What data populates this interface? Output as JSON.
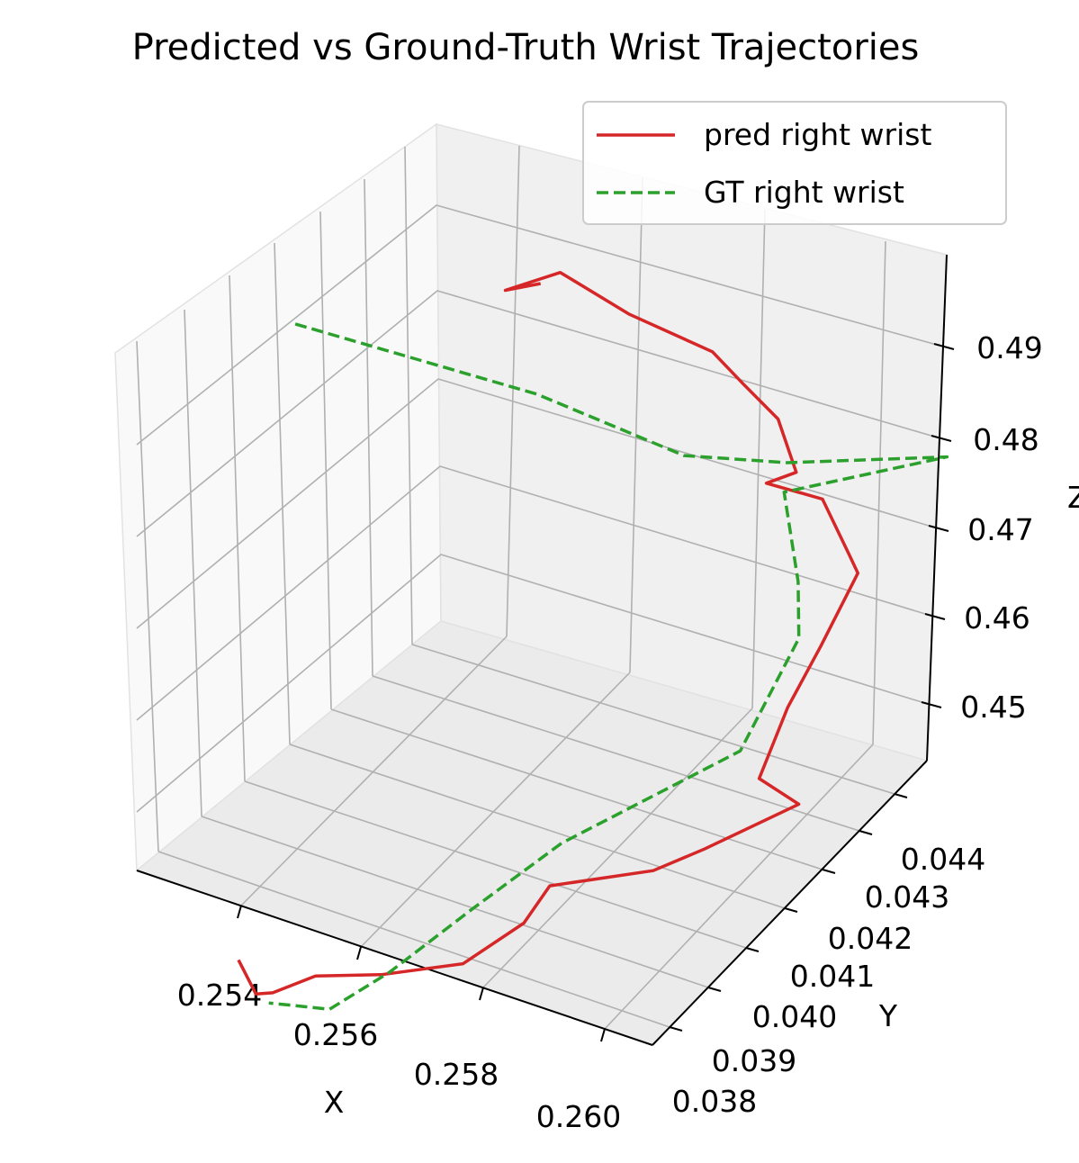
{
  "chart_data": {
    "type": "line",
    "title": "Predicted vs Ground-Truth Wrist Trajectories",
    "xlabel": "X",
    "ylabel": "Y",
    "zlabel": "Z",
    "x_ticks": [
      "0.254",
      "0.256",
      "0.258",
      "0.260"
    ],
    "y_ticks": [
      "0.038",
      "0.039",
      "0.040",
      "0.041",
      "0.042",
      "0.043",
      "0.044"
    ],
    "z_ticks": [
      "0.45",
      "0.46",
      "0.47",
      "0.48",
      "0.49"
    ],
    "grid": true,
    "legend_position": "top-right",
    "series": [
      {
        "name": "pred right wrist",
        "color": "#d62728",
        "style": "solid",
        "points": [
          [
            0.2566,
            0.0433,
            0.492
          ],
          [
            0.2557,
            0.0434,
            0.4895
          ],
          [
            0.2562,
            0.0442,
            0.4893
          ],
          [
            0.2575,
            0.0445,
            0.4858
          ],
          [
            0.2594,
            0.0445,
            0.4848
          ],
          [
            0.2601,
            0.0445,
            0.4825
          ],
          [
            0.2609,
            0.0445,
            0.48
          ],
          [
            0.2616,
            0.0442,
            0.4765
          ],
          [
            0.2612,
            0.0439,
            0.4758
          ],
          [
            0.2622,
            0.0442,
            0.4746
          ],
          [
            0.2629,
            0.0441,
            0.4702
          ],
          [
            0.2632,
            0.044,
            0.469
          ],
          [
            0.2633,
            0.043,
            0.465
          ],
          [
            0.2632,
            0.0423,
            0.4608
          ],
          [
            0.2634,
            0.0414,
            0.4568
          ],
          [
            0.2644,
            0.0413,
            0.456
          ],
          [
            0.263,
            0.0405,
            0.4519
          ],
          [
            0.2623,
            0.04,
            0.4503
          ],
          [
            0.2605,
            0.0394,
            0.448
          ],
          [
            0.26,
            0.0393,
            0.4436
          ],
          [
            0.2588,
            0.0391,
            0.4381
          ],
          [
            0.2573,
            0.0387,
            0.436
          ],
          [
            0.2558,
            0.0387,
            0.4335
          ],
          [
            0.2552,
            0.0383,
            0.4322
          ],
          [
            0.2551,
            0.038,
            0.433
          ],
          [
            0.2547,
            0.038,
            0.436
          ]
        ]
      },
      {
        "name": "GT right wrist",
        "color": "#2ca02c",
        "style": "dashed",
        "points": [
          [
            0.2525,
            0.0417,
            0.487
          ],
          [
            0.2568,
            0.043,
            0.4816
          ],
          [
            0.2596,
            0.0436,
            0.4773
          ],
          [
            0.2613,
            0.0443,
            0.4767
          ],
          [
            0.2642,
            0.0451,
            0.479
          ],
          [
            0.2617,
            0.0438,
            0.476
          ],
          [
            0.2624,
            0.0434,
            0.469
          ],
          [
            0.2627,
            0.0431,
            0.4645
          ],
          [
            0.2624,
            0.042,
            0.456
          ],
          [
            0.2602,
            0.04,
            0.4499
          ],
          [
            0.2587,
            0.0394,
            0.4426
          ],
          [
            0.2575,
            0.0387,
            0.4366
          ],
          [
            0.2565,
            0.0383,
            0.4325
          ],
          [
            0.2553,
            0.0381,
            0.432
          ]
        ]
      }
    ]
  }
}
